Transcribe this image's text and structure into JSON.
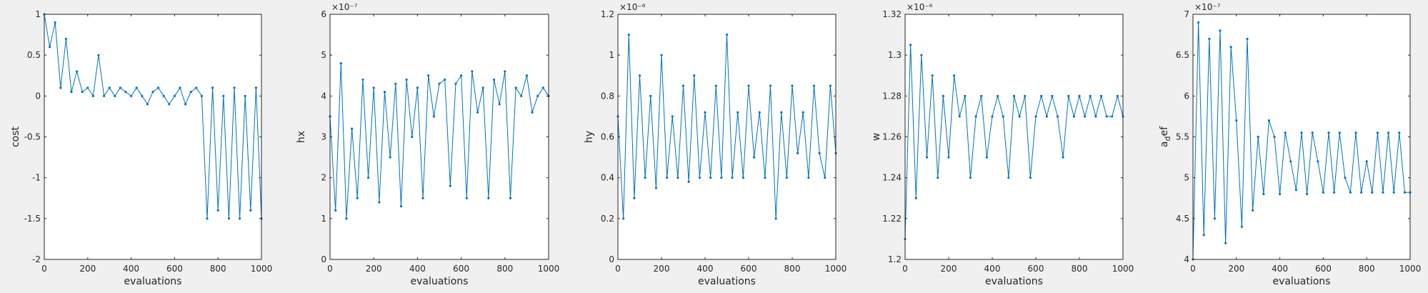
{
  "chart_data": [
    {
      "type": "line",
      "xlabel": "evaluations",
      "ylabel": "cost",
      "xlim": [
        0,
        1000
      ],
      "ylim": [
        -2,
        1
      ],
      "xticks": [
        0,
        200,
        400,
        600,
        800,
        1000
      ],
      "xtick_labels": [
        "0",
        "200",
        "400",
        "600",
        "800",
        "1000"
      ],
      "yticks": [
        -2,
        -1.5,
        -1,
        -0.5,
        0,
        0.5,
        1
      ],
      "ytick_labels": [
        "-2",
        "-1.5",
        "-1",
        "-0.5",
        "0",
        "0.5",
        "1"
      ],
      "exponent_label": "",
      "color": "#0072bd",
      "marker": "dot",
      "series": [
        {
          "x": [
            0,
            25,
            50,
            75,
            100,
            125,
            150,
            175,
            200,
            225,
            250,
            275,
            300,
            325,
            350,
            375,
            400,
            425,
            450,
            475,
            500,
            525,
            550,
            575,
            600,
            625,
            650,
            675,
            700,
            725,
            750,
            775,
            800,
            825,
            850,
            875,
            900,
            925,
            950,
            975,
            1000
          ],
          "y": [
            1,
            0.6,
            0.9,
            0.1,
            0.7,
            0.05,
            0.3,
            0.05,
            0.1,
            0.0,
            0.5,
            0.0,
            0.1,
            0.0,
            0.1,
            0.05,
            0.0,
            0.1,
            0.0,
            -0.1,
            0.05,
            0.1,
            0.0,
            -0.1,
            0.0,
            0.1,
            -0.1,
            0.05,
            0.1,
            0.0,
            -1.5,
            0.1,
            -1.4,
            0.0,
            -1.5,
            0.1,
            -1.5,
            0.0,
            -1.4,
            0.1,
            -1.5
          ]
        }
      ]
    },
    {
      "type": "line",
      "xlabel": "evaluations",
      "ylabel": "hx",
      "xlim": [
        0,
        1000
      ],
      "ylim": [
        0,
        6
      ],
      "xticks": [
        0,
        200,
        400,
        600,
        800,
        1000
      ],
      "xtick_labels": [
        "0",
        "200",
        "400",
        "600",
        "800",
        "1000"
      ],
      "yticks": [
        0,
        1,
        2,
        3,
        4,
        5,
        6
      ],
      "ytick_labels": [
        "0",
        "1",
        "2",
        "3",
        "4",
        "5",
        "6"
      ],
      "exponent_label": "×10⁻⁷",
      "color": "#0072bd",
      "marker": "dot",
      "series": [
        {
          "x": [
            0,
            25,
            50,
            75,
            100,
            125,
            150,
            175,
            200,
            225,
            250,
            275,
            300,
            325,
            350,
            375,
            400,
            425,
            450,
            475,
            500,
            525,
            550,
            575,
            600,
            625,
            650,
            675,
            700,
            725,
            750,
            775,
            800,
            825,
            850,
            875,
            900,
            925,
            950,
            975,
            1000
          ],
          "y": [
            3.5,
            1.2,
            4.8,
            1.0,
            3.2,
            1.5,
            4.4,
            2.0,
            4.2,
            1.4,
            4.1,
            2.5,
            4.3,
            1.3,
            4.4,
            3.0,
            4.2,
            1.5,
            4.5,
            3.5,
            4.3,
            4.4,
            1.8,
            4.3,
            4.5,
            1.5,
            4.6,
            3.6,
            4.2,
            1.5,
            4.4,
            3.8,
            4.6,
            1.5,
            4.2,
            4.0,
            4.5,
            3.6,
            4.0,
            4.2,
            4.0
          ]
        }
      ]
    },
    {
      "type": "line",
      "xlabel": "evaluations",
      "ylabel": "hy",
      "xlim": [
        0,
        1000
      ],
      "ylim": [
        0,
        1.2
      ],
      "xticks": [
        0,
        200,
        400,
        600,
        800,
        1000
      ],
      "xtick_labels": [
        "0",
        "200",
        "400",
        "600",
        "800",
        "1000"
      ],
      "yticks": [
        0,
        0.2,
        0.4,
        0.6,
        0.8,
        1,
        1.2
      ],
      "ytick_labels": [
        "0",
        "0.2",
        "0.4",
        "0.6",
        "0.8",
        "1",
        "1.2"
      ],
      "exponent_label": "×10⁻⁶",
      "color": "#0072bd",
      "marker": "dot",
      "series": [
        {
          "x": [
            0,
            25,
            50,
            75,
            100,
            125,
            150,
            175,
            200,
            225,
            250,
            275,
            300,
            325,
            350,
            375,
            400,
            425,
            450,
            475,
            500,
            525,
            550,
            575,
            600,
            625,
            650,
            675,
            700,
            725,
            750,
            775,
            800,
            825,
            850,
            875,
            900,
            925,
            950,
            975,
            1000
          ],
          "y": [
            0.7,
            0.2,
            1.1,
            0.3,
            0.9,
            0.4,
            0.8,
            0.35,
            1.0,
            0.4,
            0.7,
            0.4,
            0.85,
            0.38,
            0.9,
            0.4,
            0.72,
            0.4,
            0.85,
            0.4,
            1.1,
            0.4,
            0.72,
            0.4,
            0.85,
            0.5,
            0.72,
            0.4,
            0.85,
            0.2,
            0.72,
            0.4,
            0.85,
            0.52,
            0.72,
            0.4,
            0.85,
            0.52,
            0.4,
            0.85,
            0.52
          ]
        }
      ]
    },
    {
      "type": "line",
      "xlabel": "evaluations",
      "ylabel": "w",
      "xlim": [
        0,
        1000
      ],
      "ylim": [
        1.2,
        1.32
      ],
      "xticks": [
        0,
        200,
        400,
        600,
        800,
        1000
      ],
      "xtick_labels": [
        "0",
        "200",
        "400",
        "600",
        "800",
        "1000"
      ],
      "yticks": [
        1.2,
        1.22,
        1.24,
        1.26,
        1.28,
        1.3,
        1.32
      ],
      "ytick_labels": [
        "1.2",
        "1.22",
        "1.24",
        "1.26",
        "1.28",
        "1.3",
        "1.32"
      ],
      "exponent_label": "×10⁻⁶",
      "color": "#0072bd",
      "marker": "dot",
      "series": [
        {
          "x": [
            0,
            25,
            50,
            75,
            100,
            125,
            150,
            175,
            200,
            225,
            250,
            275,
            300,
            325,
            350,
            375,
            400,
            425,
            450,
            475,
            500,
            525,
            550,
            575,
            600,
            625,
            650,
            675,
            700,
            725,
            750,
            775,
            800,
            825,
            850,
            875,
            900,
            925,
            950,
            975,
            1000
          ],
          "y": [
            1.21,
            1.305,
            1.23,
            1.3,
            1.25,
            1.29,
            1.24,
            1.28,
            1.25,
            1.29,
            1.27,
            1.28,
            1.24,
            1.27,
            1.28,
            1.25,
            1.27,
            1.28,
            1.27,
            1.24,
            1.28,
            1.27,
            1.28,
            1.24,
            1.27,
            1.28,
            1.27,
            1.28,
            1.27,
            1.25,
            1.28,
            1.27,
            1.28,
            1.27,
            1.28,
            1.27,
            1.28,
            1.27,
            1.27,
            1.28,
            1.27
          ]
        }
      ]
    },
    {
      "type": "line",
      "xlabel": "evaluations",
      "ylabel": "a_def",
      "ylabel_main": "a",
      "ylabel_sub": "d",
      "ylabel_rest": "ef",
      "xlim": [
        0,
        1000
      ],
      "ylim": [
        4,
        7
      ],
      "xticks": [
        0,
        200,
        400,
        600,
        800,
        1000
      ],
      "xtick_labels": [
        "0",
        "200",
        "400",
        "600",
        "800",
        "1000"
      ],
      "yticks": [
        4,
        4.5,
        5,
        5.5,
        6,
        6.5,
        7
      ],
      "ytick_labels": [
        "4",
        "4.5",
        "5",
        "5.5",
        "6",
        "6.5",
        "7"
      ],
      "exponent_label": "×10⁻⁷",
      "color": "#0072bd",
      "marker": "dot",
      "series": [
        {
          "x": [
            0,
            25,
            50,
            75,
            100,
            125,
            150,
            175,
            200,
            225,
            250,
            275,
            300,
            325,
            350,
            375,
            400,
            425,
            450,
            475,
            500,
            525,
            550,
            575,
            600,
            625,
            650,
            675,
            700,
            725,
            750,
            775,
            800,
            825,
            850,
            875,
            900,
            925,
            950,
            975,
            1000
          ],
          "y": [
            4.0,
            6.9,
            4.3,
            6.7,
            4.5,
            6.8,
            4.2,
            6.6,
            5.7,
            4.4,
            6.7,
            4.6,
            5.5,
            4.8,
            5.7,
            5.5,
            4.8,
            5.55,
            5.2,
            4.85,
            5.55,
            4.8,
            5.55,
            5.2,
            4.82,
            5.55,
            4.82,
            5.55,
            5.0,
            4.82,
            5.55,
            4.82,
            5.2,
            4.82,
            5.55,
            4.82,
            5.55,
            4.82,
            5.55,
            4.82,
            4.82
          ]
        }
      ]
    }
  ]
}
